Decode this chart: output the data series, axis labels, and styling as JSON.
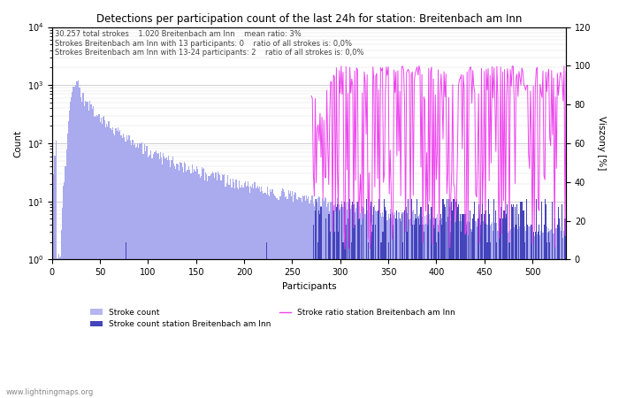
{
  "title": "Detections per participation count of the last 24h for station: Breitenbach am Inn",
  "xlabel": "Participants",
  "ylabel_left": "Count",
  "ylabel_right": "Viszony [%]",
  "annotation_lines": [
    "30.257 total strokes    1.020 Breitenbach am Inn    mean ratio: 3%",
    "Strokes Breitenbach am Inn with 13 participants: 0    ratio of all strokes is: 0,0%",
    "Strokes Breitenbach am Inn with 13-24 participants: 2    ratio of all strokes is: 0,0%"
  ],
  "watermark": "www.lightningmaps.org",
  "bar_color_total": "#aaaaee",
  "bar_color_station": "#4444bb",
  "line_color_ratio": "#ee44ee",
  "xmax": 535,
  "xlim_left": 0,
  "ymin": 1,
  "ymax": 10000,
  "right_ymin": 0,
  "right_ymax": 120,
  "xticks": [
    0,
    50,
    100,
    150,
    200,
    250,
    300,
    350,
    400,
    450,
    500
  ],
  "right_yticks": [
    0,
    20,
    40,
    60,
    80,
    100,
    120
  ],
  "figwidth": 7.0,
  "figheight": 4.5,
  "dpi": 100
}
